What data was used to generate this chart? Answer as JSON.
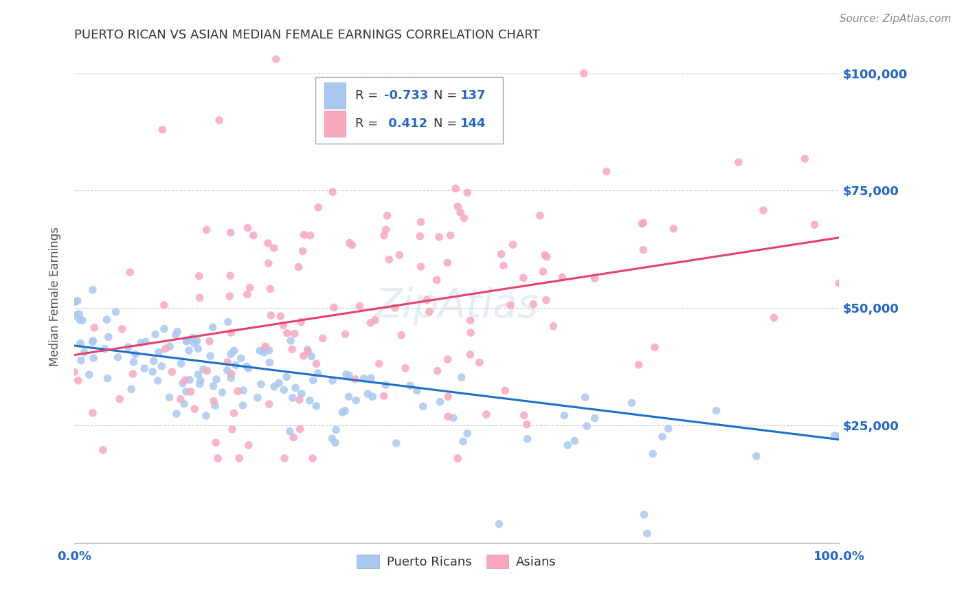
{
  "title": "PUERTO RICAN VS ASIAN MEDIAN FEMALE EARNINGS CORRELATION CHART",
  "source": "Source: ZipAtlas.com",
  "ylabel": "Median Female Earnings",
  "ytick_vals": [
    0,
    25000,
    50000,
    75000,
    100000
  ],
  "ytick_labels": [
    "",
    "$25,000",
    "$50,000",
    "$75,000",
    "$100,000"
  ],
  "pr_scatter_color": "#a8c8f0",
  "as_scatter_color": "#f8a8bc",
  "pr_line_color": "#1a6fcc",
  "as_line_color": "#e8406c",
  "axis_label_color": "#2266cc",
  "title_color": "#333333",
  "source_color": "#888888",
  "ylabel_color": "#555555",
  "legend_text_color": "#333333",
  "legend_num_color": "#2266cc",
  "watermark_color": "#c8dff0",
  "ymin": 0,
  "ymax": 105000,
  "xmin": 0.0,
  "xmax": 1.0,
  "n_pr": 137,
  "n_as": 144,
  "pr_seed": 7,
  "as_seed": 13,
  "legend_r_pr": "-0.733",
  "legend_n_pr": "137",
  "legend_r_as": "0.412",
  "legend_n_as": "144"
}
